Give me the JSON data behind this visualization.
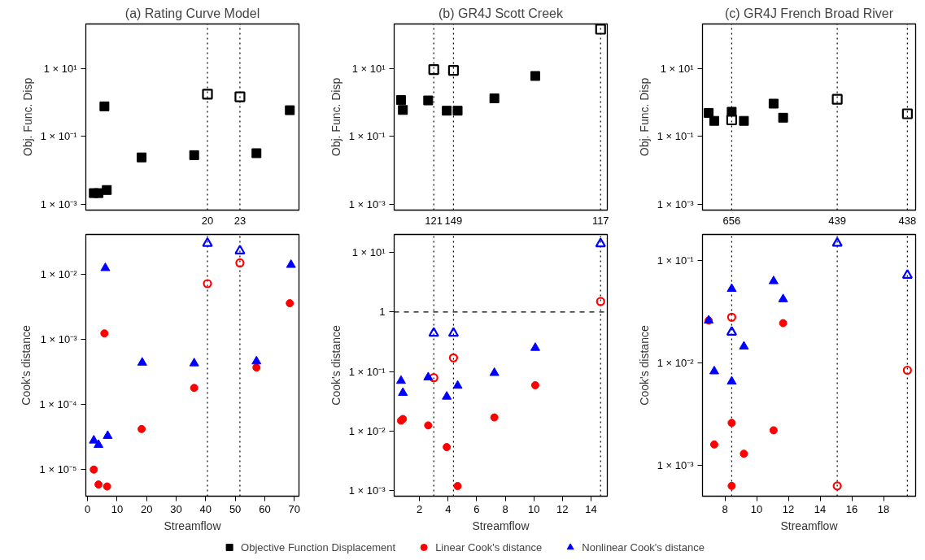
{
  "chart_data": [
    {
      "type": "scatter",
      "title": "(a) Rating Curve Model",
      "ylabel": "Obj. Func. Disp",
      "log": "y",
      "grid": false,
      "legend": "bottom",
      "tick_labels": "y",
      "xlim": [
        -0.6,
        71.6
      ],
      "ylim": [
        0.00066,
        215
      ],
      "yticks": [
        {
          "value": 0.001,
          "label": "1 × 10⁻³"
        },
        {
          "value": 0.1,
          "label": "1 × 10⁻¹"
        },
        {
          "value": 10,
          "label": "1 × 10¹"
        }
      ],
      "annotations": [
        "20",
        "23"
      ],
      "ref_lines": [
        {
          "axis": "x",
          "value": 40.6,
          "line_style": "dotted"
        },
        {
          "axis": "x",
          "value": 51.6,
          "line_style": "dotted"
        }
      ],
      "series": [
        {
          "name": "Objective Function Displacement",
          "color": "#000000",
          "marker": "square",
          "x": [
            2.1,
            3.7,
            6.5,
            5.7,
            18.3,
            36.1,
            57.2,
            68.5
          ],
          "values": [
            0.0021,
            0.0021,
            0.0026,
            0.78,
            0.024,
            0.028,
            0.032,
            0.6
          ]
        },
        {
          "color": "#000000",
          "marker": "square",
          "x": [
            40.6,
            51.6
          ],
          "values": [
            1.8,
            1.5
          ]
        }
      ]
    },
    {
      "type": "scatter",
      "title": "(b) GR4J Scott Creek",
      "ylabel": "Obj. Func. Disp",
      "log": "y",
      "grid": false,
      "tick_labels": "y",
      "xlim": [
        0.23,
        15.14
      ],
      "ylim": [
        0.00066,
        215
      ],
      "yticks": [
        {
          "value": 0.001,
          "label": "1 × 10⁻³"
        },
        {
          "value": 0.1,
          "label": "1 × 10⁻¹"
        },
        {
          "value": 10,
          "label": "1 × 10¹"
        }
      ],
      "annotations": [
        "121",
        "149",
        "117"
      ],
      "ref_lines": [
        {
          "axis": "x",
          "value": 3.0,
          "line_style": "dotted"
        },
        {
          "axis": "x",
          "value": 4.38,
          "line_style": "dotted"
        },
        {
          "axis": "x",
          "value": 14.67,
          "line_style": "dotted"
        }
      ],
      "series": [
        {
          "color": "#000000",
          "marker": "square",
          "x": [
            0.71,
            0.84,
            2.61,
            3.91,
            4.67,
            7.24,
            10.1
          ],
          "values": [
            1.2,
            0.61,
            1.17,
            0.58,
            0.58,
            1.35,
            6.2
          ]
        },
        {
          "color": "#000000",
          "marker": "square",
          "x": [
            3.0,
            4.38,
            14.67
          ],
          "values": [
            9.6,
            9.1,
            150
          ]
        }
      ]
    },
    {
      "type": "scatter",
      "title": "(c) GR4J French Broad River",
      "ylabel": "Obj. Func. Disp",
      "log": "y",
      "grid": false,
      "tick_labels": "y",
      "xlim": [
        6.59,
        20.02
      ],
      "ylim": [
        0.00066,
        215
      ],
      "yticks": [
        {
          "value": 0.001,
          "label": "1 × 10⁻³"
        },
        {
          "value": 0.1,
          "label": "1 × 10⁻¹"
        },
        {
          "value": 10,
          "label": "1 × 10¹"
        }
      ],
      "annotations": [
        "656",
        "439",
        "438"
      ],
      "ref_lines": [
        {
          "axis": "x",
          "value": 8.43,
          "line_style": "dotted"
        },
        {
          "axis": "x",
          "value": 15.08,
          "line_style": "dotted"
        },
        {
          "axis": "x",
          "value": 19.5,
          "line_style": "dotted"
        }
      ],
      "series": [
        {
          "color": "#000000",
          "marker": "square",
          "x": [
            6.98,
            7.33,
            8.43,
            9.2,
            11.07,
            11.67
          ],
          "values": [
            0.5,
            0.29,
            0.54,
            0.29,
            0.94,
            0.36
          ]
        },
        {
          "color": "#000000",
          "marker": "square",
          "x": [
            8.43,
            15.08,
            19.5
          ],
          "values": [
            0.31,
            1.26,
            0.47
          ]
        }
      ]
    },
    {
      "type": "scatter",
      "xlabel": "Streamflow",
      "ylabel": "Cook's distance",
      "log": "y",
      "grid": false,
      "legend": "bottom",
      "xlim": [
        -0.6,
        71.6
      ],
      "xticks": [
        0,
        10,
        20,
        30,
        40,
        50,
        60,
        70
      ],
      "ylim": [
        3.9e-06,
        0.041
      ],
      "yticks": [
        {
          "value": 1e-05,
          "label": "1 × 10⁻⁵"
        },
        {
          "value": 0.0001,
          "label": "1 × 10⁻⁴"
        },
        {
          "value": 0.001,
          "label": "1 × 10⁻³"
        },
        {
          "value": 0.01,
          "label": "1 × 10⁻²"
        }
      ],
      "ref_lines": [
        {
          "axis": "x",
          "value": 40.6,
          "line_style": "dotted"
        },
        {
          "axis": "x",
          "value": 51.6,
          "line_style": "dotted"
        }
      ],
      "series": [
        {
          "name": "Linear Cook's distance",
          "color": "#ff0000",
          "marker": "circle",
          "x": [
            2.1,
            3.7,
            6.6,
            5.7,
            18.3,
            36.1,
            57.2,
            68.5
          ],
          "values": [
            1e-05,
            5.9e-06,
            5.5e-06,
            0.00124,
            4.2e-05,
            0.00018,
            0.00037,
            0.0036
          ]
        },
        {
          "color": "#ff0000",
          "marker": "circle",
          "x": [
            40.6,
            51.6
          ],
          "values": [
            0.0072,
            0.015
          ]
        },
        {
          "name": "Nonlinear Cook's distance",
          "color": "#0000ff",
          "marker": "triangle",
          "x": [
            2.1,
            3.7,
            6.8,
            6.0,
            18.5,
            36.1,
            57.2,
            68.9
          ],
          "values": [
            2.8e-05,
            2.4e-05,
            3.3e-05,
            0.0125,
            0.00044,
            0.00043,
            0.00046,
            0.014
          ]
        },
        {
          "color": "#0000ff",
          "marker": "triangle",
          "x": [
            40.6,
            51.6
          ],
          "values": [
            0.03,
            0.023
          ]
        }
      ]
    },
    {
      "type": "scatter",
      "xlabel": "Streamflow",
      "ylabel": "Cook's distance",
      "log": "y",
      "grid": false,
      "xlim": [
        0.23,
        15.14
      ],
      "xticks": [
        2,
        4,
        6,
        8,
        10,
        12,
        14
      ],
      "ylim": [
        0.00081,
        20
      ],
      "yticks": [
        {
          "value": 0.001,
          "label": "1 × 10⁻³"
        },
        {
          "value": 0.01,
          "label": "1 × 10⁻²"
        },
        {
          "value": 0.1,
          "label": "1 × 10⁻¹"
        },
        1,
        {
          "value": 10,
          "label": "1 × 10¹"
        }
      ],
      "ref_lines": [
        {
          "axis": "x",
          "value": 3.0,
          "line_style": "dotted"
        },
        {
          "axis": "x",
          "value": 4.38,
          "line_style": "dotted"
        },
        {
          "axis": "x",
          "value": 14.67,
          "line_style": "dotted"
        },
        {
          "axis": "y",
          "value": 1,
          "line_style": "dashed"
        }
      ],
      "series": [
        {
          "color": "#ff0000",
          "marker": "circle",
          "x": [
            0.71,
            0.84,
            2.61,
            3.91,
            4.67,
            7.24,
            10.1
          ],
          "values": [
            0.015,
            0.016,
            0.0125,
            0.0054,
            0.0012,
            0.017,
            0.059
          ]
        },
        {
          "color": "#ff0000",
          "marker": "circle",
          "x": [
            3.0,
            4.38,
            14.67
          ],
          "values": [
            0.079,
            0.17,
            1.5
          ]
        },
        {
          "color": "#0000ff",
          "marker": "triangle",
          "x": [
            0.71,
            0.84,
            2.61,
            3.91,
            4.67,
            7.24,
            10.1
          ],
          "values": [
            0.07,
            0.044,
            0.08,
            0.038,
            0.058,
            0.095,
            0.25
          ]
        },
        {
          "color": "#0000ff",
          "marker": "triangle",
          "x": [
            3.0,
            4.38,
            14.67
          ],
          "values": [
            0.44,
            0.44,
            14
          ]
        }
      ]
    },
    {
      "type": "scatter",
      "xlabel": "Streamflow",
      "ylabel": "Cook's distance",
      "log": "y",
      "grid": false,
      "xlim": [
        6.59,
        20.02
      ],
      "xticks": [
        8,
        10,
        12,
        14,
        16,
        18
      ],
      "ylim": [
        0.0005,
        0.18
      ],
      "yticks": [
        {
          "value": 0.001,
          "label": "1 × 10⁻³"
        },
        {
          "value": 0.01,
          "label": "1 × 10⁻²"
        },
        {
          "value": 0.1,
          "label": "1 × 10⁻¹"
        }
      ],
      "ref_lines": [
        {
          "axis": "x",
          "value": 8.43,
          "line_style": "dotted"
        },
        {
          "axis": "x",
          "value": 15.08,
          "line_style": "dotted"
        },
        {
          "axis": "x",
          "value": 19.5,
          "line_style": "dotted"
        }
      ],
      "series": [
        {
          "color": "#ff0000",
          "marker": "circle",
          "x": [
            6.98,
            7.33,
            8.43,
            8.43,
            9.2,
            11.07,
            11.67
          ],
          "values": [
            0.026,
            0.0016,
            0.0026,
            0.00063,
            0.0013,
            0.0022,
            0.0245
          ]
        },
        {
          "color": "#ff0000",
          "marker": "circle",
          "x": [
            8.43,
            15.08,
            19.5
          ],
          "values": [
            0.028,
            0.00063,
            0.0085
          ]
        },
        {
          "color": "#0000ff",
          "marker": "triangle",
          "x": [
            6.98,
            7.33,
            8.43,
            8.43,
            9.2,
            11.07,
            11.67
          ],
          "values": [
            0.026,
            0.0083,
            0.053,
            0.0066,
            0.0145,
            0.063,
            0.042
          ]
        },
        {
          "color": "#0000ff",
          "marker": "triangle",
          "x": [
            8.43,
            15.08,
            19.5
          ],
          "values": [
            0.02,
            0.148,
            0.072
          ]
        }
      ]
    }
  ]
}
